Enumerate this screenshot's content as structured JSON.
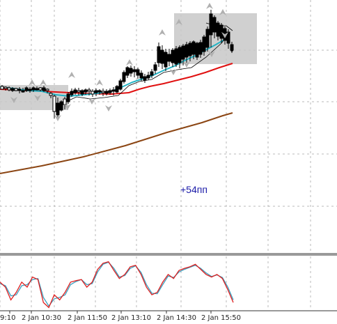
{
  "chart": {
    "annotation": "+54пп",
    "colors": {
      "background": "#ffffff",
      "grid": "#b9b9b9",
      "candle": "#000000",
      "box": "#c8c8c8",
      "ma_red": "#e01010",
      "ma_brown": "#8b4513",
      "ma_teal": "#22b3c4",
      "envelope": "#000000",
      "arrow": "#b0b0b0",
      "stoch_main": "#e02020",
      "stoch_signal": "#3ba0c0",
      "separator": "#333333"
    }
  },
  "chart_data": {
    "type": "line",
    "x_tick_labels": [
      "9:10",
      "2 Jan 10:30",
      "2 Jan 11:50",
      "2 Jan 13:10",
      "2 Jan 14:30",
      "2 Jan 15:50"
    ],
    "series": [
      {
        "values": [
          0.16,
          0.18,
          0.2,
          0.22,
          0.24,
          0.26,
          0.28,
          0.3,
          0.32,
          0.34,
          0.36,
          0.38,
          0.4,
          0.42,
          0.44,
          0.46,
          0.48,
          0.5,
          0.52,
          0.54,
          0.56,
          0.58,
          0.6,
          0.62,
          0.64,
          0.66,
          0.68
        ]
      },
      {
        "values": [
          0.68,
          0.68,
          0.69,
          0.69,
          0.68,
          0.69,
          0.69,
          0.7,
          0.7,
          0.71,
          0.72,
          0.74,
          0.76,
          0.77,
          0.78,
          0.8,
          0.82,
          0.84,
          0.86,
          0.87,
          0.88,
          0.89,
          0.9,
          0.92
        ]
      },
      {
        "values": [
          0.68,
          0.69,
          0.68,
          0.7,
          0.72,
          0.7,
          0.68,
          0.72,
          0.75,
          0.78,
          0.84,
          0.86,
          0.88,
          0.9,
          0.96,
          1.0,
          0.99,
          0.96
        ]
      }
    ],
    "stochastic": {
      "values": [
        0.55,
        0.45,
        0.2,
        0.35,
        0.55,
        0.45,
        0.65,
        0.6,
        0.15,
        0.05,
        0.3,
        0.2,
        0.35,
        0.55,
        0.58,
        0.6,
        0.45,
        0.55,
        0.8,
        0.92,
        0.95,
        0.78,
        0.62,
        0.7,
        0.85,
        0.88,
        0.7,
        0.45,
        0.3,
        0.35,
        0.55,
        0.7,
        0.62,
        0.78,
        0.82,
        0.85,
        0.9,
        0.8,
        0.7,
        0.65,
        0.7,
        0.62,
        0.4,
        0.15
      ],
      "signal": [
        0.52,
        0.48,
        0.28,
        0.3,
        0.48,
        0.5,
        0.6,
        0.62,
        0.25,
        0.08,
        0.22,
        0.25,
        0.3,
        0.5,
        0.56,
        0.6,
        0.5,
        0.52,
        0.75,
        0.9,
        0.94,
        0.82,
        0.65,
        0.68,
        0.82,
        0.87,
        0.74,
        0.5,
        0.33,
        0.32,
        0.5,
        0.67,
        0.64,
        0.75,
        0.8,
        0.84,
        0.88,
        0.82,
        0.73,
        0.66,
        0.69,
        0.64,
        0.45,
        0.2
      ]
    }
  }
}
